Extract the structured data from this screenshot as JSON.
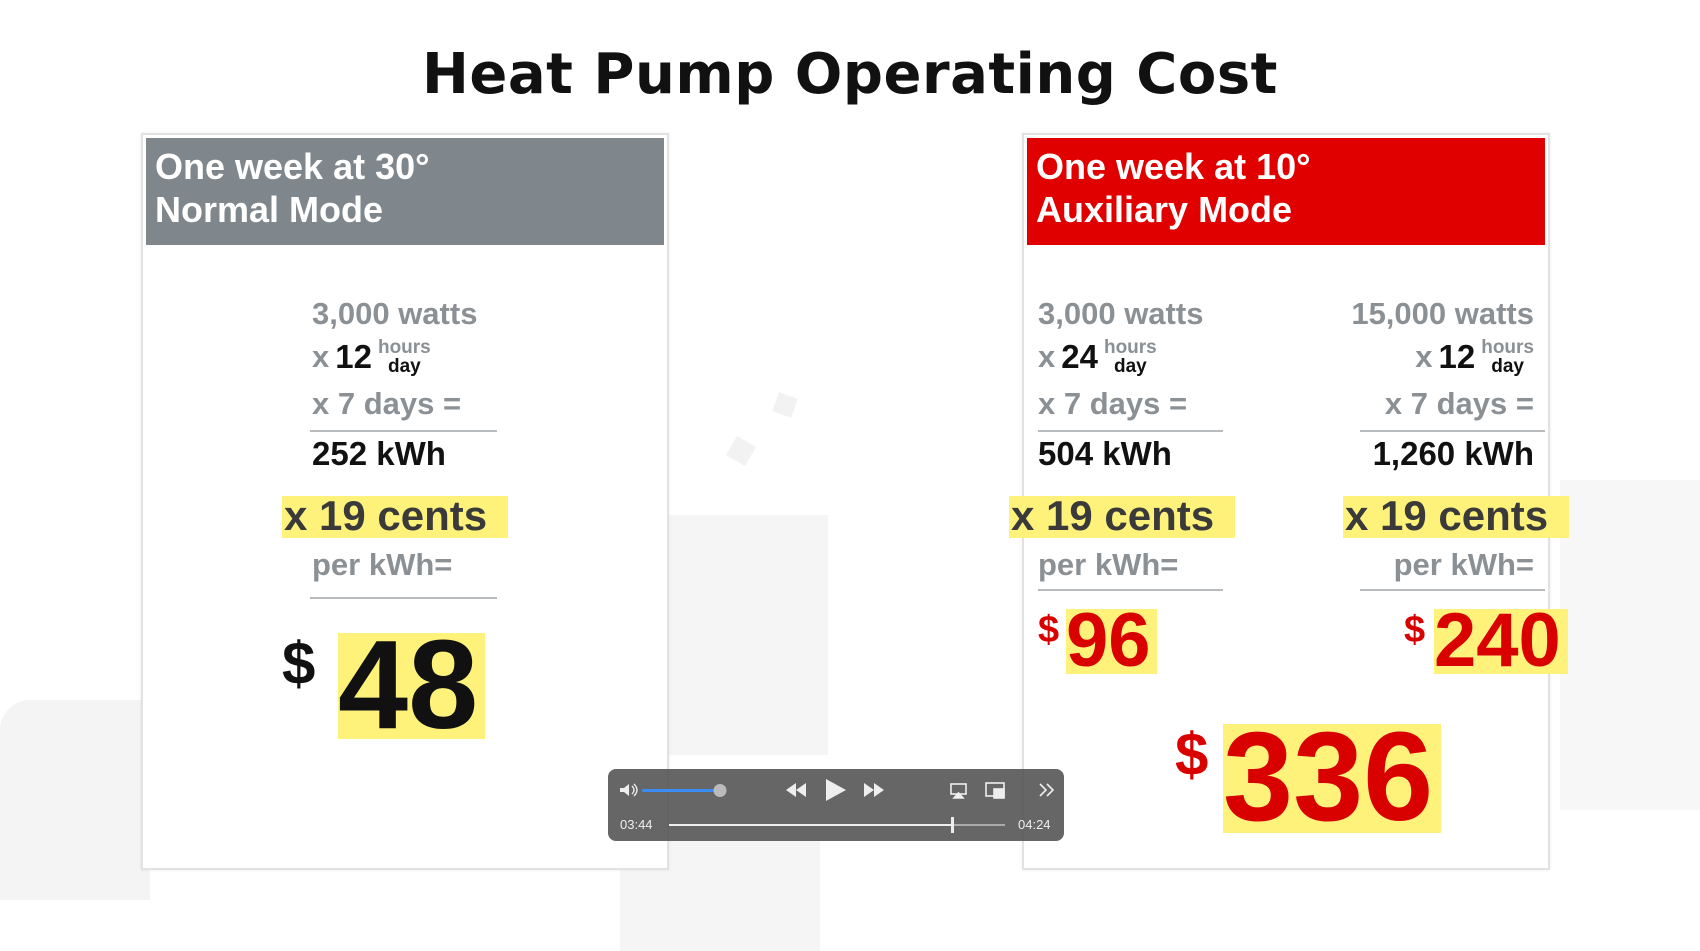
{
  "title": "Heat Pump Operating Cost",
  "cards": [
    {
      "header": [
        "One week at 30°",
        "Normal Mode"
      ],
      "columns": [
        {
          "watts": "3,000 watts",
          "times": "x",
          "hours": "12",
          "unit_top": "hours",
          "unit_bottom": "day",
          "days": "x 7 days =",
          "energy": "252 kWh",
          "rate": "x 19 cents",
          "rate_unit": "per kWh=",
          "currency": "$",
          "cost": "48"
        }
      ]
    },
    {
      "header": [
        "One week at 10°",
        "Auxiliary Mode"
      ],
      "columns": [
        {
          "watts": "3,000 watts",
          "times": "x",
          "hours": "24",
          "unit_top": "hours",
          "unit_bottom": "day",
          "days": "x 7 days =",
          "energy": "504 kWh",
          "rate": "x 19 cents",
          "rate_unit": "per kWh=",
          "currency": "$",
          "cost": "96"
        },
        {
          "watts": "15,000 watts",
          "times": "x",
          "hours": "12",
          "unit_top": "hours",
          "unit_bottom": "day",
          "days": "x 7 days =",
          "energy": "1,260 kWh",
          "rate": "x 19 cents",
          "rate_unit": "per kWh=",
          "currency": "$",
          "cost": "240"
        }
      ],
      "total": {
        "currency": "$",
        "cost": "336"
      }
    }
  ],
  "player": {
    "elapsed": "03:44",
    "duration": "04:24"
  }
}
